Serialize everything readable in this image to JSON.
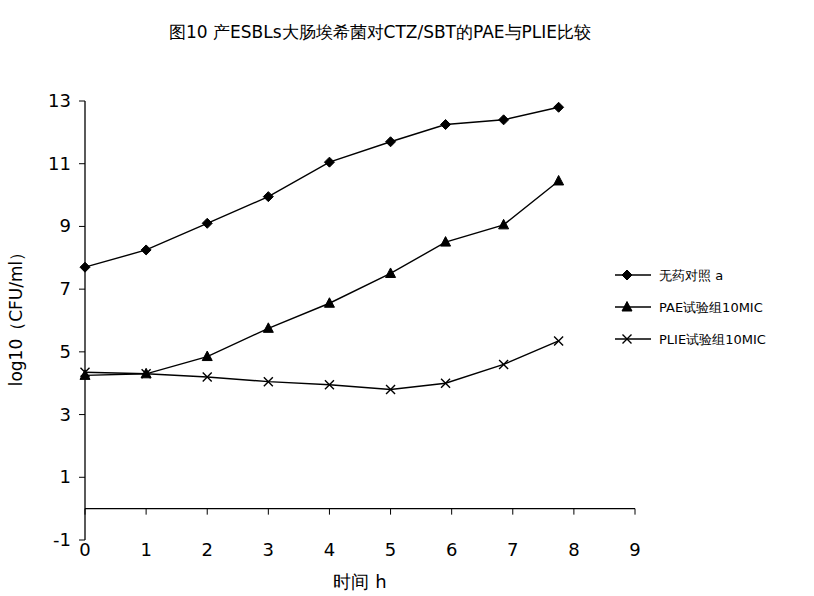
{
  "chart_data": {
    "type": "line",
    "title": "图10 产ESBLs大肠埃希菌对CTZ/SBT的PAE与PLIE比较",
    "x_label": "时间  h",
    "y_label": "log10（CFU/ml）",
    "x": [
      0,
      1,
      2,
      3,
      4,
      5,
      5.9,
      6.85,
      7.75
    ],
    "xlim": [
      0,
      9
    ],
    "xticks": [
      0,
      1,
      2,
      3,
      4,
      5,
      6,
      7,
      8,
      9
    ],
    "ylim": [
      -1,
      13
    ],
    "yticks": [
      -1,
      1,
      3,
      5,
      7,
      9,
      11,
      13
    ],
    "grid": false,
    "legend": "right",
    "series": [
      {
        "name": "无药对照 a",
        "color": "#000000",
        "marker": "diamond",
        "line_style": "solid",
        "values": [
          7.7,
          8.25,
          9.1,
          9.95,
          11.05,
          11.7,
          12.25,
          12.4,
          12.8
        ]
      },
      {
        "name": "PAE试验组10MIC",
        "color": "#000000",
        "marker": "triangle",
        "line_style": "solid",
        "values": [
          4.25,
          4.3,
          4.85,
          5.75,
          6.55,
          7.5,
          8.5,
          9.05,
          10.45
        ]
      },
      {
        "name": "PLIE试验组10MIC",
        "color": "#000000",
        "marker": "x",
        "line_style": "solid",
        "values": [
          4.35,
          4.3,
          4.2,
          4.05,
          3.95,
          3.8,
          4.0,
          4.6,
          5.35
        ]
      }
    ]
  }
}
